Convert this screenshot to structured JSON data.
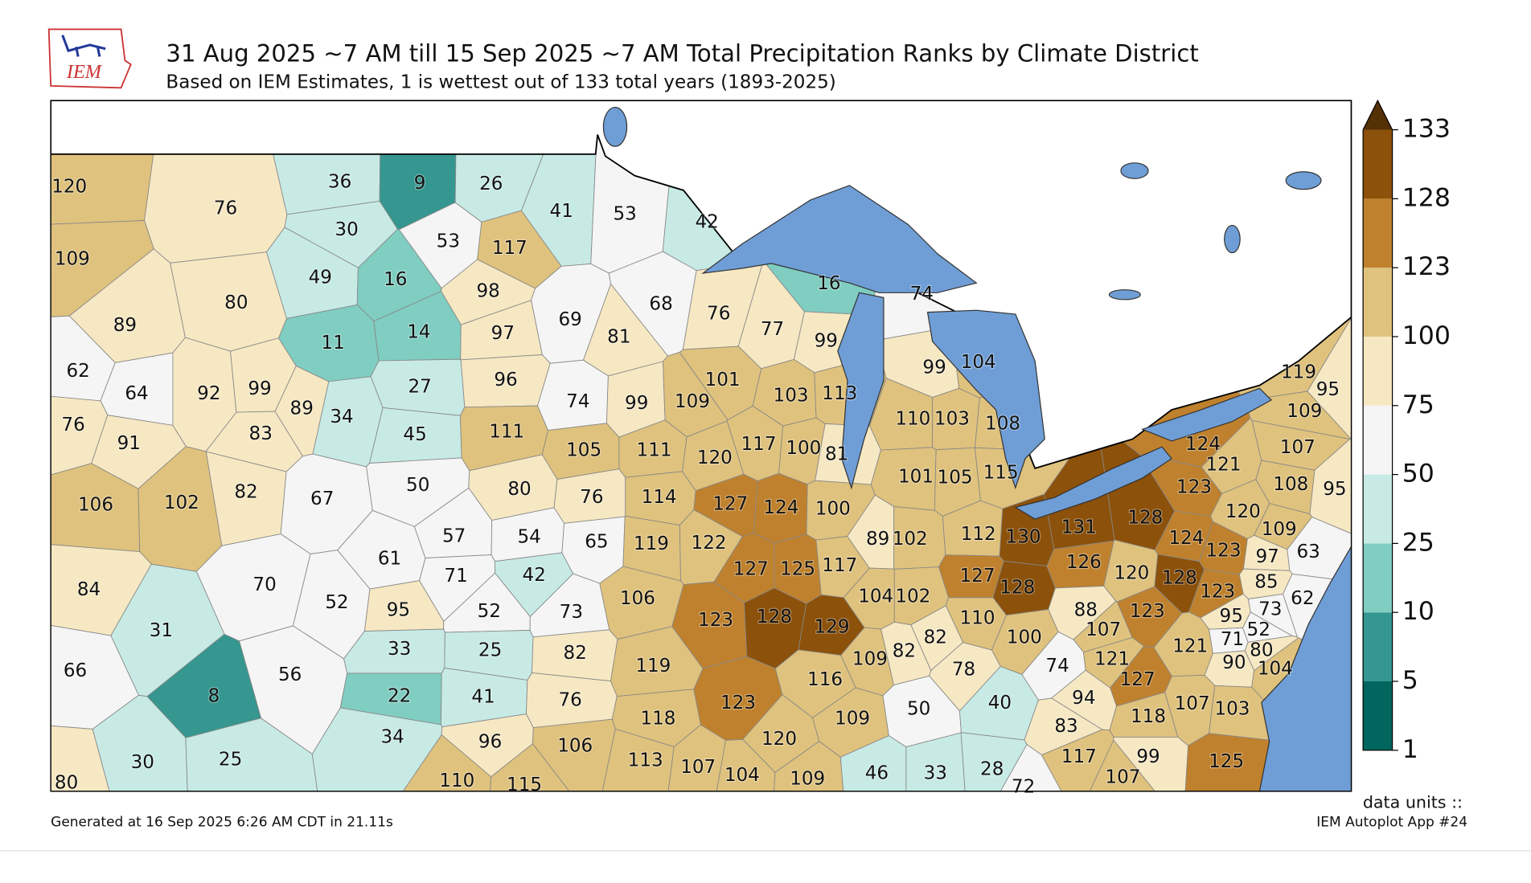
{
  "header": {
    "logo": "IEM",
    "title": "31 Aug 2025 ~7 AM till 15 Sep 2025 ~7 AM Total Precipitation Ranks by Climate District",
    "subtitle": "Based on IEM Estimates, 1 is wettest out of 133 total years (1893-2025)"
  },
  "map": {
    "district_ranks": [
      120,
      76,
      109,
      80,
      89,
      36,
      9,
      26,
      30,
      53,
      117,
      49,
      16,
      98,
      41,
      53,
      42,
      69,
      68,
      81,
      76,
      77,
      99,
      16,
      74,
      11,
      14,
      97,
      27,
      96,
      34,
      89,
      45,
      111,
      62,
      64,
      92,
      99,
      76,
      91,
      83,
      106,
      102,
      82,
      74,
      99,
      109,
      101,
      103,
      113,
      99,
      104,
      110,
      103,
      108,
      105,
      111,
      120,
      117,
      100,
      81,
      101,
      105,
      115,
      67,
      50,
      80,
      76,
      114,
      127,
      124,
      100,
      61,
      57,
      54,
      71,
      42,
      65,
      119,
      122,
      127,
      125,
      117,
      89,
      102,
      112,
      130,
      131,
      128,
      120,
      124,
      123,
      109,
      97,
      63,
      124,
      121,
      123,
      108,
      107,
      119,
      95,
      109,
      95,
      84,
      70,
      52,
      31,
      66,
      56,
      8,
      95,
      52,
      73,
      33,
      25,
      82,
      22,
      41,
      76,
      106,
      123,
      128,
      129,
      104,
      102,
      127,
      128,
      126,
      120,
      128,
      123,
      85,
      62,
      110,
      100,
      88,
      107,
      123,
      95,
      73,
      52,
      71,
      80,
      121,
      90,
      104,
      119,
      118,
      123,
      116,
      109,
      82,
      82,
      78,
      74,
      121,
      127,
      94,
      83,
      118,
      107,
      103,
      50,
      40,
      109,
      120,
      34,
      96,
      106,
      30,
      25,
      80,
      110,
      115,
      113,
      107,
      104,
      109,
      46,
      33,
      28,
      72,
      117,
      99,
      107,
      125
    ]
  },
  "colorbar": {
    "bounds": [
      1,
      5,
      10,
      25,
      50,
      75,
      100,
      123,
      128,
      133
    ],
    "colors": [
      "#01665e",
      "#35978f",
      "#80cdc1",
      "#c7eae5",
      "#f5f5f5",
      "#f6e8c3",
      "#dfc27d",
      "#bf812d",
      "#8c510a"
    ],
    "extend_color": "#543005"
  },
  "footer": {
    "units": "data units ::",
    "generated": "Generated at 16 Sep 2025 6:26 AM CDT in 21.11s",
    "app": "IEM Autoplot App #24"
  }
}
